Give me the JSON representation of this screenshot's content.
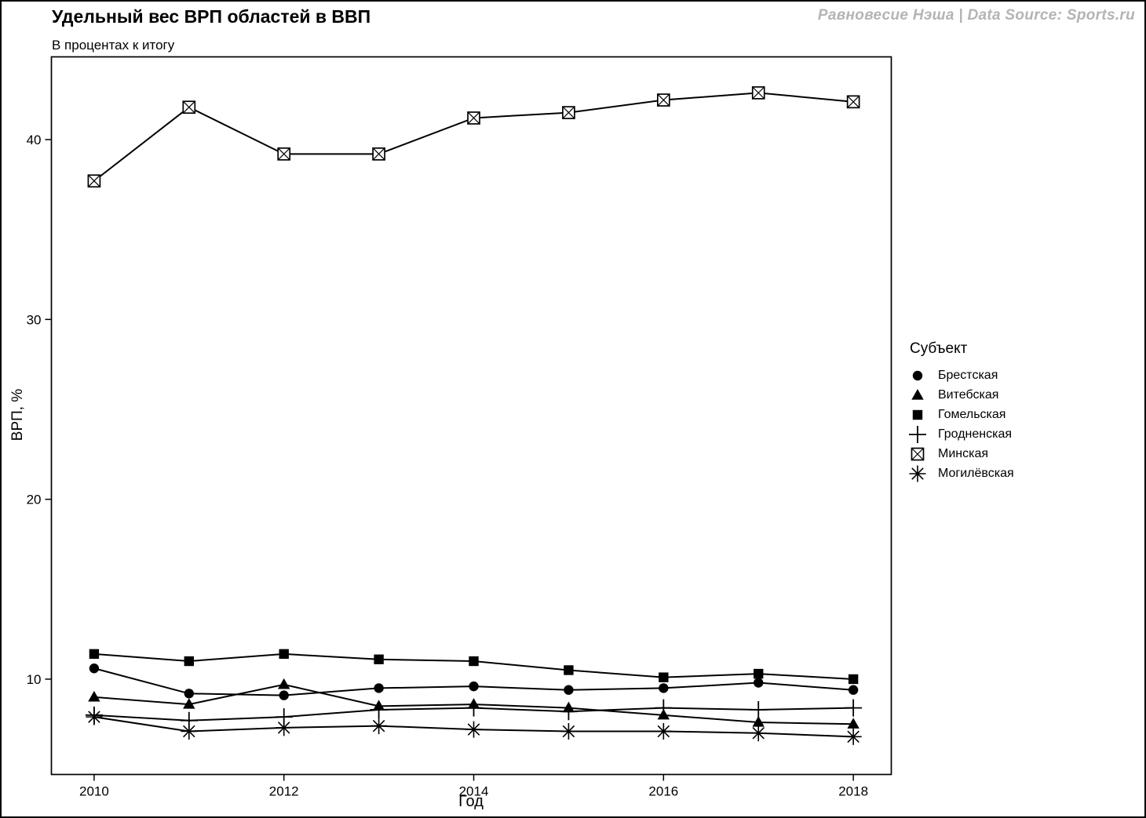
{
  "chart_data": {
    "type": "line",
    "title": "Удельный вес ВРП областей в ВВП",
    "subtitle": "В процентах к итогу",
    "watermark": "Равновесие Нэша | Data Source: Sports.ru",
    "xlabel": "Год",
    "ylabel": "ВРП, %",
    "legend_title": "Субъект",
    "x": [
      2010,
      2011,
      2012,
      2013,
      2014,
      2015,
      2016,
      2017,
      2018
    ],
    "x_ticks": [
      2010,
      2012,
      2014,
      2016,
      2018
    ],
    "y_ticks": [
      10,
      20,
      30,
      40
    ],
    "xlim": [
      2009.55,
      2018.4
    ],
    "ylim": [
      4.7,
      44.6
    ],
    "grid": false,
    "legend_position": "right",
    "line_color": "#000000",
    "series": [
      {
        "name": "Брестская",
        "marker": "circle",
        "values": [
          10.6,
          9.2,
          9.1,
          9.5,
          9.6,
          9.4,
          9.5,
          9.8,
          9.4
        ]
      },
      {
        "name": "Витебская",
        "marker": "triangle",
        "values": [
          9.0,
          8.6,
          9.7,
          8.5,
          8.6,
          8.4,
          8.0,
          7.6,
          7.5
        ]
      },
      {
        "name": "Гомельская",
        "marker": "square",
        "values": [
          11.4,
          11.0,
          11.4,
          11.1,
          11.0,
          10.5,
          10.1,
          10.3,
          10.0
        ]
      },
      {
        "name": "Гродненская",
        "marker": "plus",
        "values": [
          8.0,
          7.7,
          7.9,
          8.3,
          8.4,
          8.2,
          8.4,
          8.3,
          8.4
        ]
      },
      {
        "name": "Минская",
        "marker": "boxed-x",
        "values": [
          37.7,
          41.8,
          39.2,
          39.2,
          41.2,
          41.5,
          42.2,
          42.6,
          42.1
        ]
      },
      {
        "name": "Могилёвская",
        "marker": "asterisk",
        "values": [
          7.9,
          7.1,
          7.3,
          7.4,
          7.2,
          7.1,
          7.1,
          7.0,
          6.8
        ]
      }
    ]
  }
}
